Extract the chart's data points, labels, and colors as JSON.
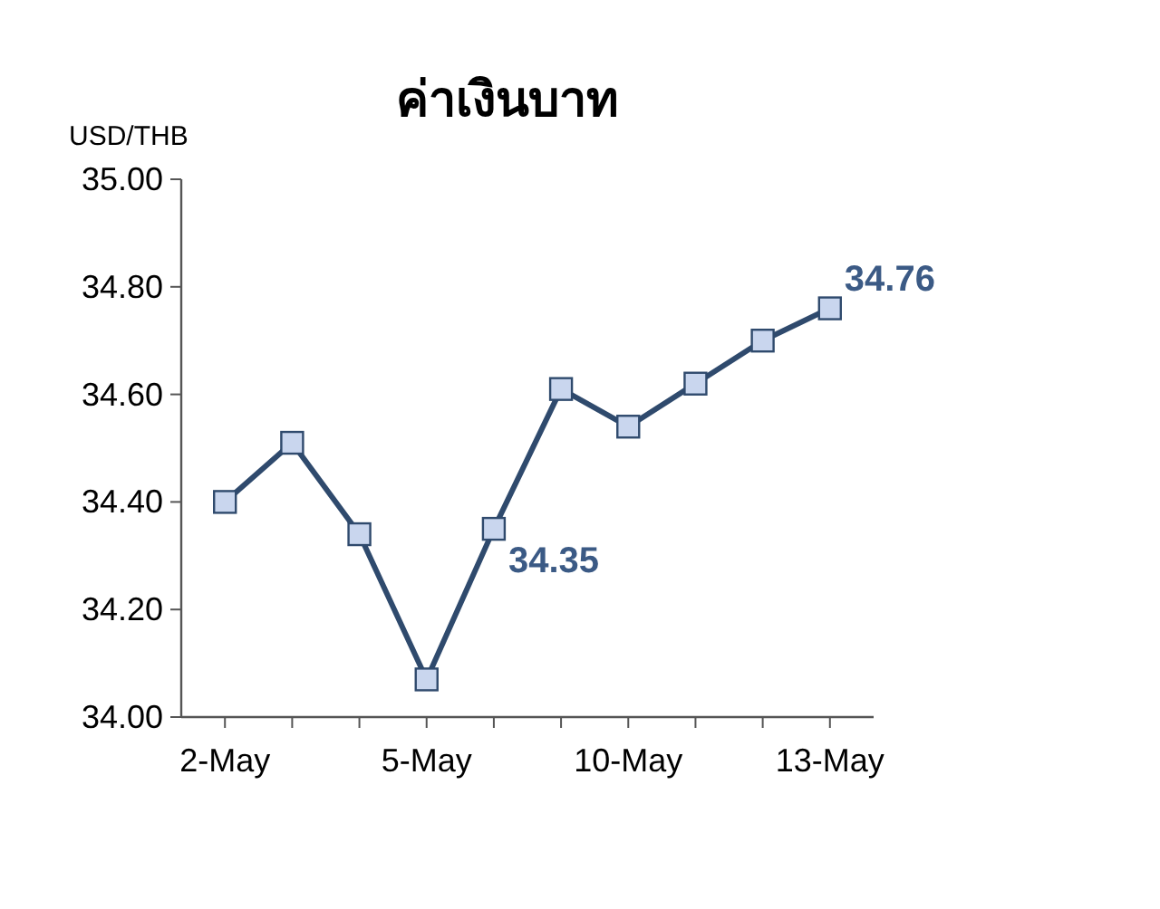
{
  "chart_data": {
    "type": "line",
    "title": "ค่าเงินบาท",
    "ylabel": "USD/THB",
    "categories": [
      "2-May",
      null,
      null,
      "5-May",
      null,
      null,
      "10-May",
      null,
      null,
      "13-May"
    ],
    "series": [
      {
        "color": "#2f4a6d",
        "values": [
          34.4,
          34.51,
          34.34,
          34.07,
          34.35,
          34.61,
          34.54,
          34.62,
          34.7,
          34.76
        ],
        "value_labels": [
          null,
          null,
          null,
          null,
          "34.35",
          null,
          null,
          null,
          null,
          "34.76"
        ]
      }
    ],
    "ylim": [
      34,
      35
    ],
    "yticks": [
      {
        "value": 34,
        "label": "34.00"
      },
      {
        "value": 34.2,
        "label": "34.20"
      },
      {
        "value": 34.4,
        "label": "34.40"
      },
      {
        "value": 34.6,
        "label": "34.60"
      },
      {
        "value": 34.8,
        "label": "34.80"
      },
      {
        "value": 35,
        "label": "35.00"
      }
    ],
    "marker": "square",
    "line_style": "solid"
  }
}
